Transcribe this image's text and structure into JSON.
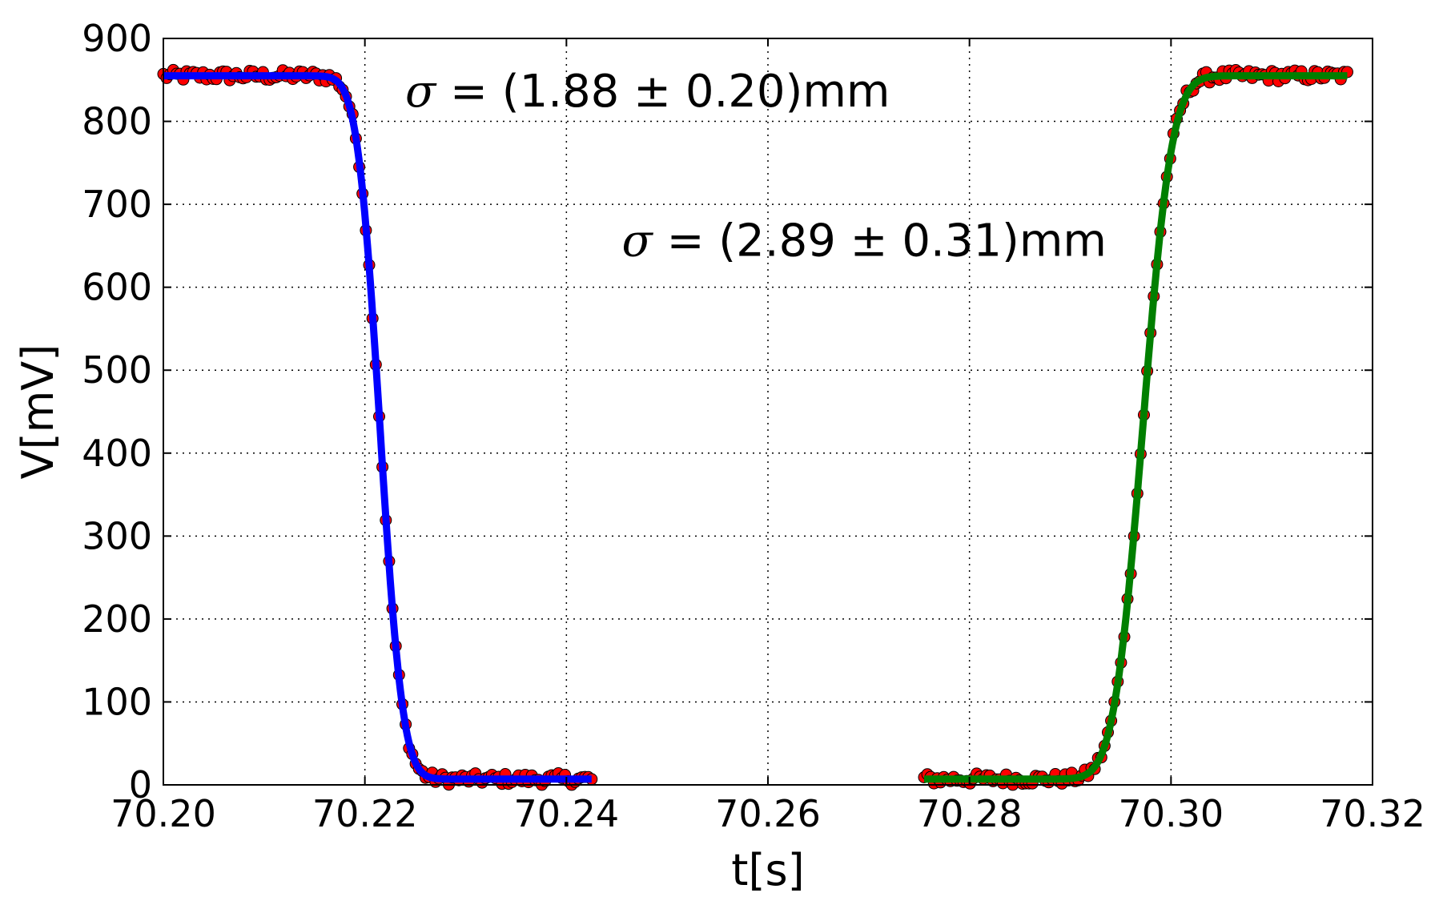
{
  "chart_data": {
    "type": "scatter",
    "title": "",
    "xlabel": "t[s]",
    "ylabel": "V[mV]",
    "xlim": [
      70.2,
      70.32
    ],
    "ylim": [
      0,
      900
    ],
    "x_ticks": [
      "70.20",
      "70.22",
      "70.24",
      "70.26",
      "70.28",
      "70.30",
      "70.32"
    ],
    "y_ticks": [
      "0",
      "100",
      "200",
      "300",
      "400",
      "500",
      "600",
      "700",
      "800",
      "900"
    ],
    "grid": true,
    "annotations": [
      {
        "symbol": "σ",
        "text": " = (1.88 ± 0.20)mm",
        "x": 70.224,
        "y": 818
      },
      {
        "symbol": "σ",
        "text": " = (2.89 ± 0.31)mm",
        "x": 70.2455,
        "y": 638
      }
    ],
    "series": [
      {
        "kind": "scatter",
        "color": "#ff0000",
        "edge_color": "#000000",
        "segments": [
          {
            "x_start": 70.2,
            "x_end": 70.2425,
            "count": 130
          },
          {
            "x_start": 70.2755,
            "x_end": 70.3175,
            "count": 130
          }
        ],
        "sample_points": [
          [
            70.2,
            858
          ],
          [
            70.205,
            862
          ],
          [
            70.214,
            856
          ],
          [
            70.218,
            780
          ],
          [
            70.221,
            500
          ],
          [
            70.2235,
            180
          ],
          [
            70.227,
            10
          ],
          [
            70.235,
            8
          ],
          [
            70.2425,
            8
          ],
          [
            70.2755,
            7
          ],
          [
            70.286,
            18
          ],
          [
            70.29,
            10
          ],
          [
            70.294,
            160
          ],
          [
            70.297,
            450
          ],
          [
            70.3,
            700
          ],
          [
            70.304,
            845
          ],
          [
            70.312,
            860
          ],
          [
            70.3175,
            858
          ]
        ]
      },
      {
        "kind": "line",
        "color": "#0000ff",
        "fit": "erf-falling",
        "x_start": 70.2,
        "x_end": 70.2425,
        "high": 855,
        "low": 7,
        "center": 70.2215,
        "width": 0.0025
      },
      {
        "kind": "line",
        "color": "#007f00",
        "fit": "erf-rising",
        "x_start": 70.2755,
        "x_end": 70.3175,
        "high": 855,
        "low": 7,
        "center": 70.2972,
        "width": 0.0032
      }
    ]
  }
}
